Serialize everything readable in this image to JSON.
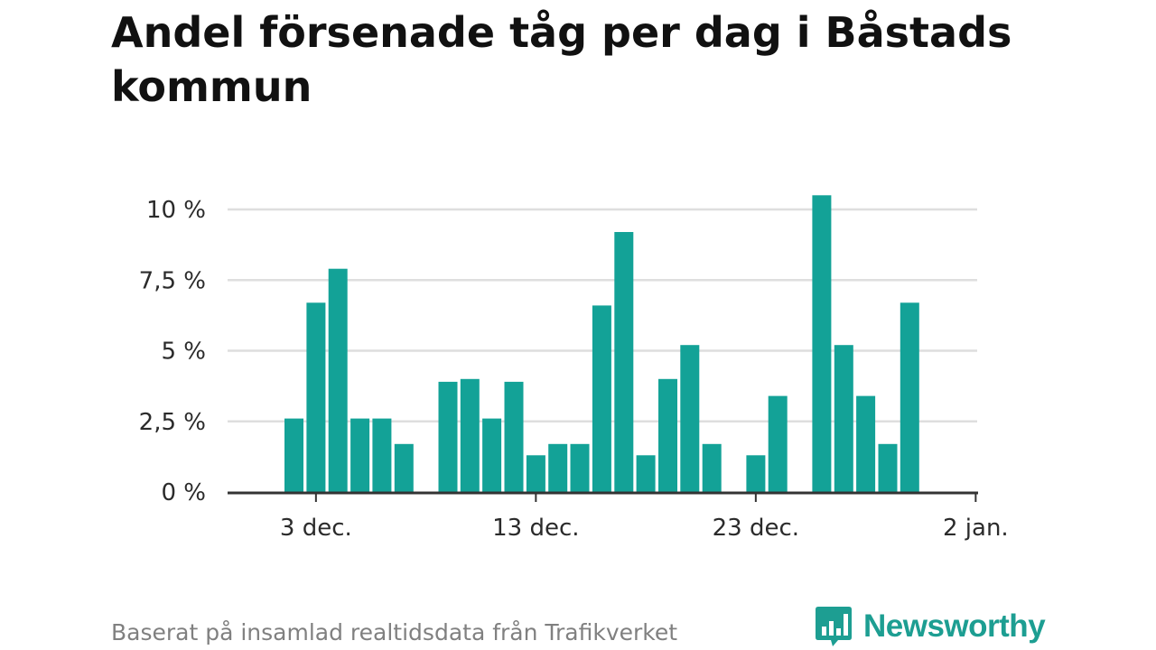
{
  "title": "Andel försenade tåg per dag i Båstads kommun",
  "source": "Baserat på insamlad realtidsdata från Trafikverket",
  "brand": "Newsworthy",
  "colors": {
    "bar": "#13a297",
    "grid": "#dedede",
    "axis": "#333333",
    "brand": "#1d9e92"
  },
  "chart_data": {
    "type": "bar",
    "x_tick_labels": [
      "3 dec.",
      "13 dec.",
      "23 dec.",
      "2 jan."
    ],
    "y_tick_labels": [
      "0 %",
      "2,5 %",
      "5 %",
      "7,5 %",
      "10 %"
    ],
    "y_ticks": [
      0,
      2.5,
      5,
      7.5,
      10
    ],
    "ylim": [
      0,
      10.5
    ],
    "unit": "%",
    "grid": true,
    "x": [
      "2 dec.",
      "3 dec.",
      "4 dec.",
      "5 dec.",
      "6 dec.",
      "7 dec.",
      "8 dec.",
      "9 dec.",
      "10 dec.",
      "11 dec.",
      "12 dec.",
      "13 dec.",
      "14 dec.",
      "15 dec.",
      "16 dec.",
      "17 dec.",
      "18 dec.",
      "19 dec.",
      "20 dec.",
      "21 dec.",
      "22 dec.",
      "23 dec.",
      "24 dec.",
      "25 dec.",
      "26 dec.",
      "27 dec.",
      "28 dec.",
      "29 dec.",
      "30 dec.",
      "31 dec.",
      "1 jan.",
      "2 jan."
    ],
    "values": [
      2.6,
      6.7,
      7.9,
      2.6,
      2.6,
      1.7,
      null,
      3.9,
      4.0,
      2.6,
      3.9,
      1.3,
      1.7,
      1.7,
      6.6,
      9.2,
      1.3,
      4.0,
      5.2,
      1.7,
      null,
      1.3,
      3.4,
      null,
      10.5,
      5.2,
      3.4,
      1.7,
      6.7,
      null,
      null,
      null
    ]
  }
}
